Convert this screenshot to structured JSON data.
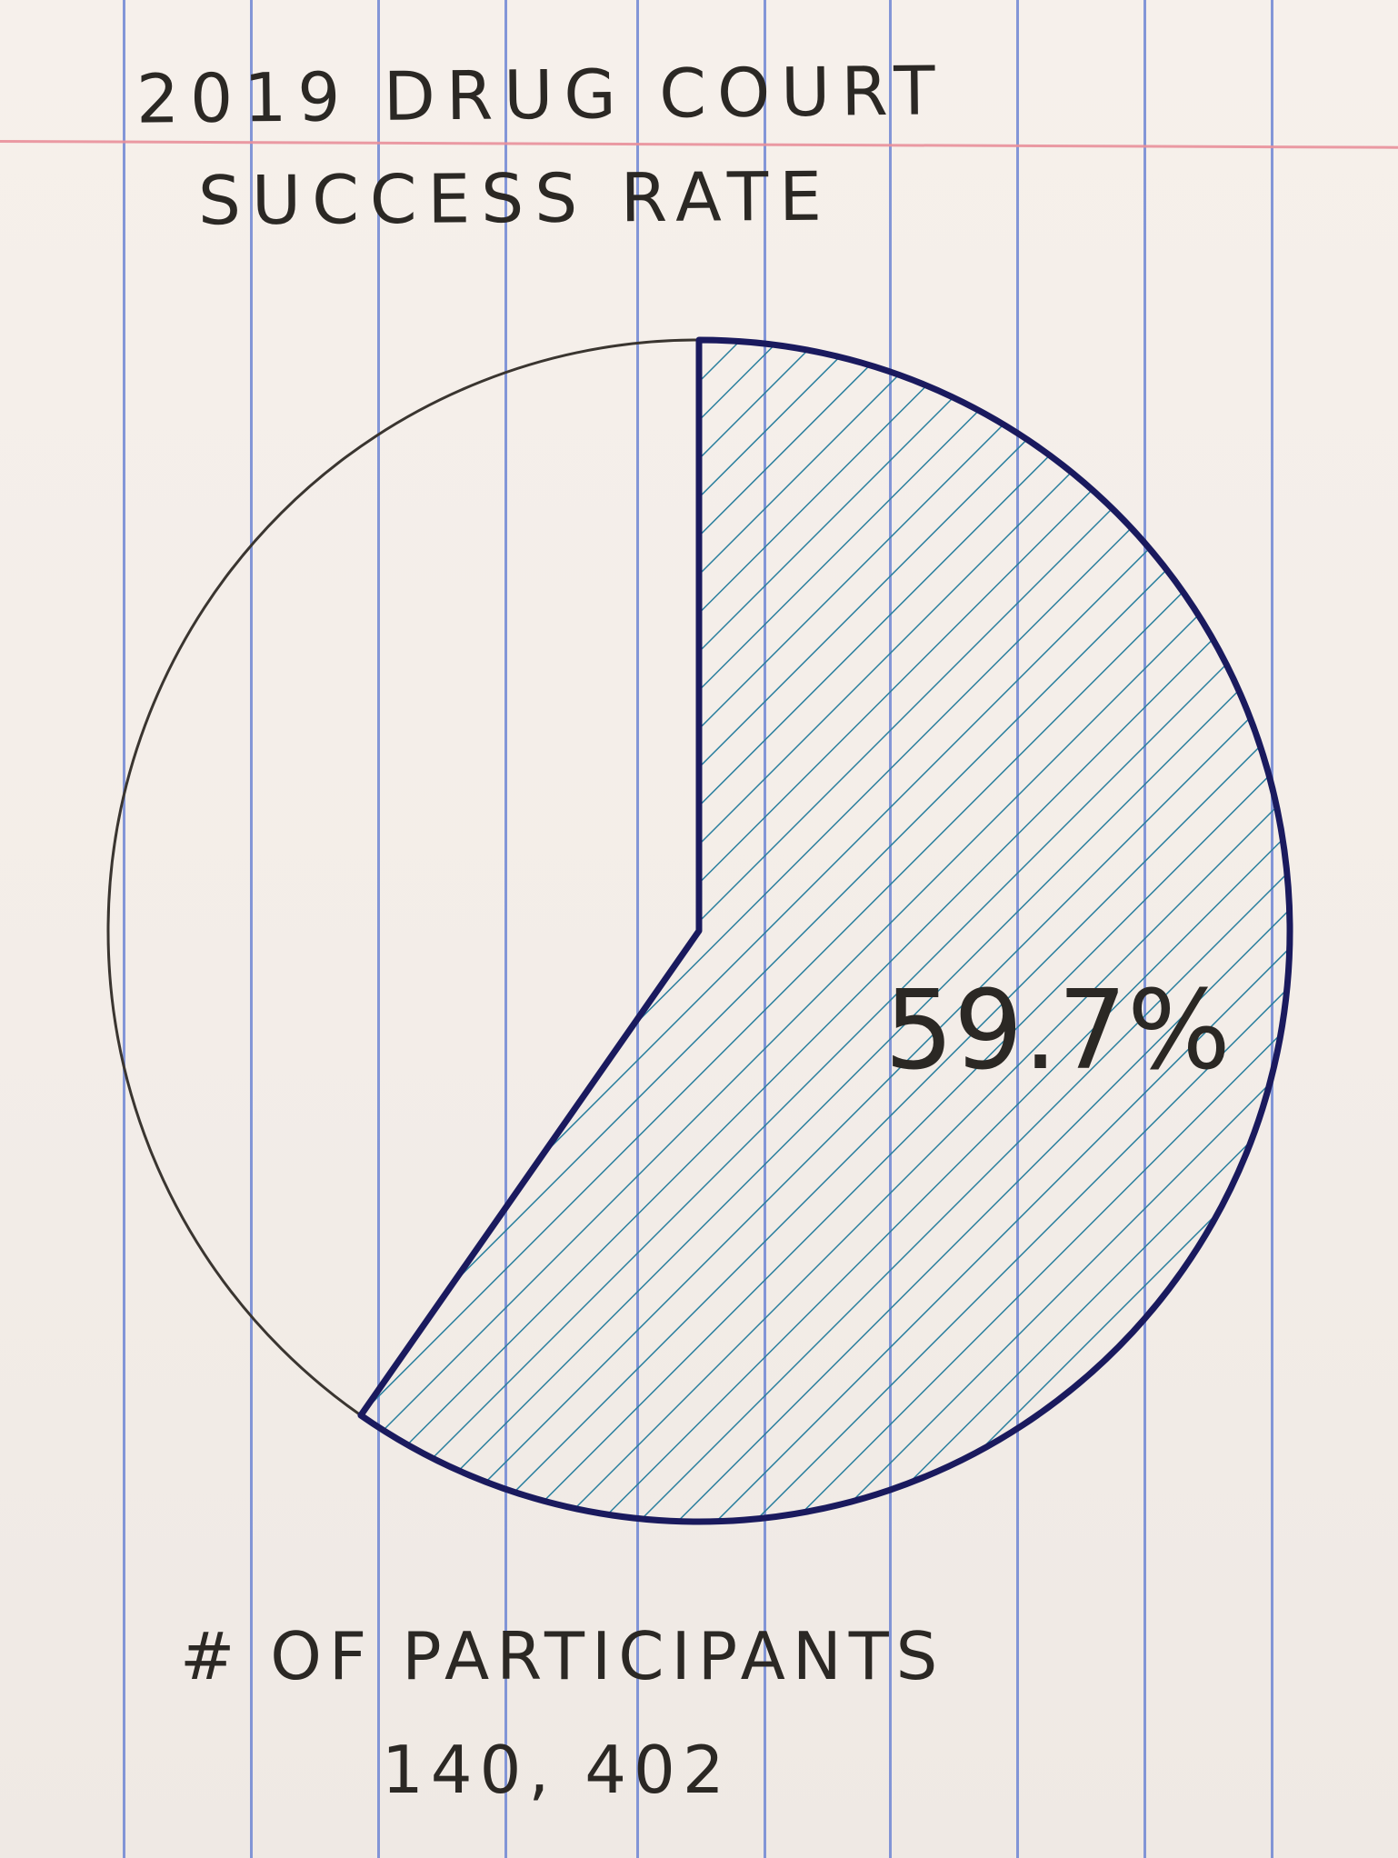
{
  "chart_data": {
    "type": "pie",
    "title": "2019 DRUG COURT",
    "subtitle": "SUCCESS RATE",
    "slices": [
      {
        "value": 59.7,
        "label": "59.7%",
        "hatched": true
      }
    ],
    "participants_label": "# OF PARTICIPANTS",
    "participants_value": "140, 402",
    "colors": {
      "hatch": "#2a7f9e",
      "slice_outline": "#1a1a5e",
      "circle_outline": "#3a3530",
      "ink": "#2b2824",
      "rule_lines": "#6f86d3",
      "margin_line": "#e98f9a"
    }
  }
}
